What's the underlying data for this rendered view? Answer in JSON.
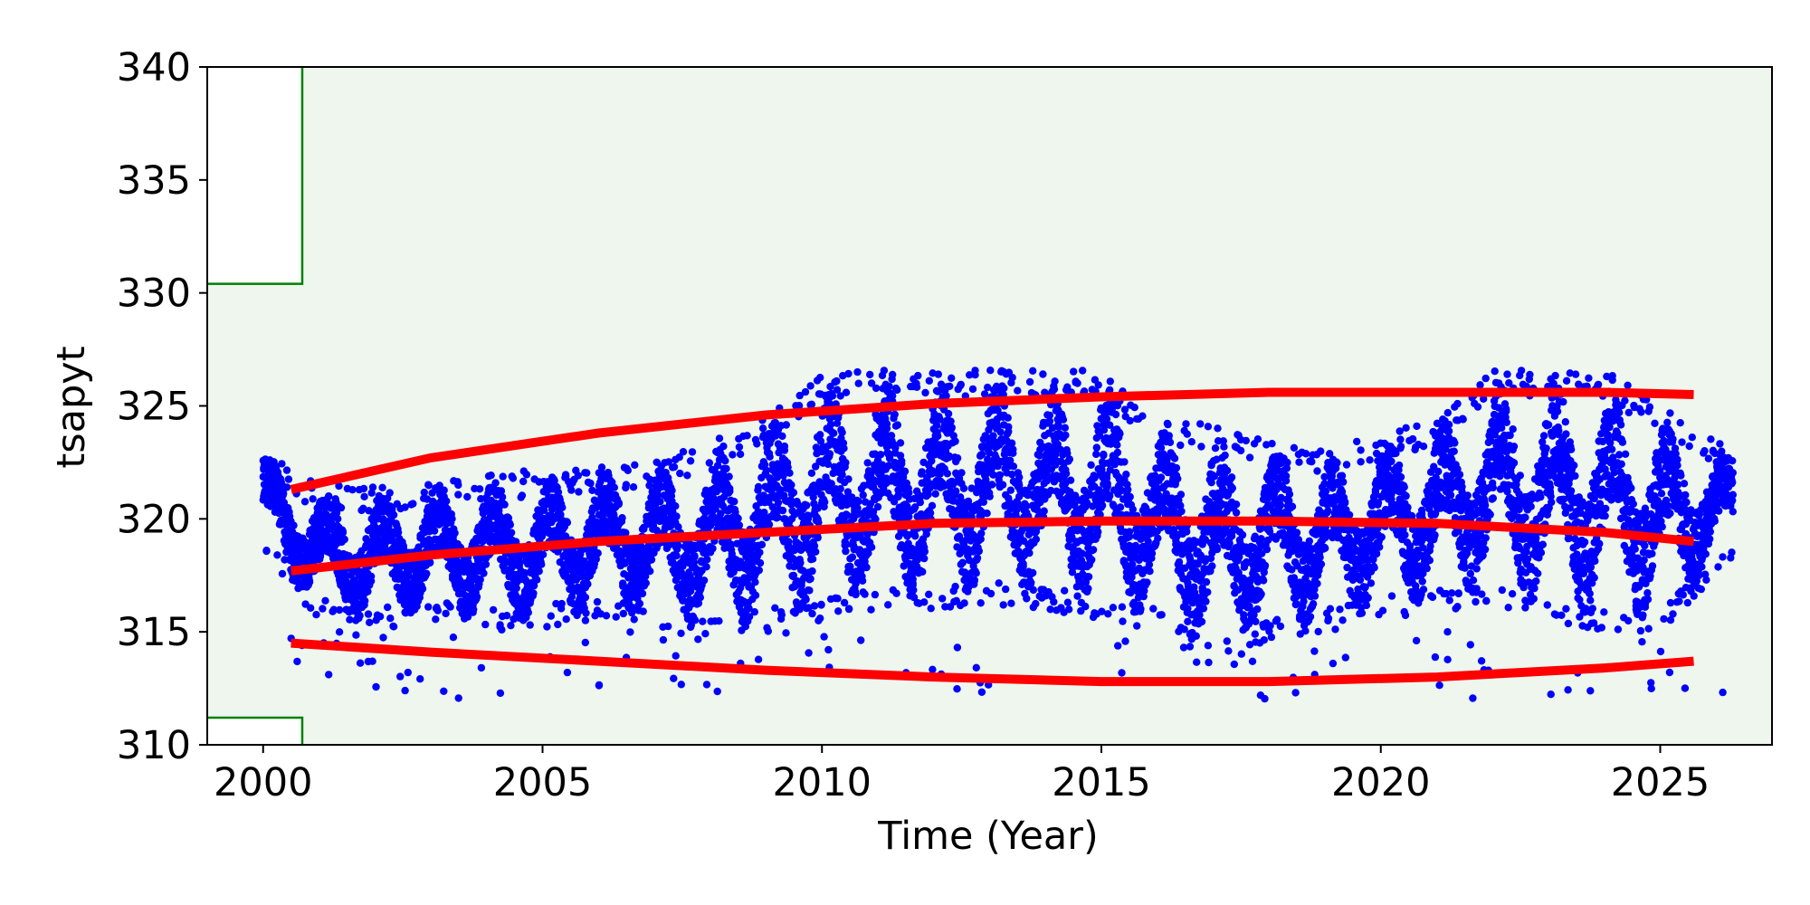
{
  "chart_data": {
    "type": "scatter",
    "title": "",
    "xlabel": "Time (Year)",
    "ylabel": "tsapyt",
    "xlim": [
      1999.0,
      2027.0
    ],
    "ylim": [
      310,
      340
    ],
    "x_ticks": [
      2000,
      2005,
      2010,
      2015,
      2020,
      2025
    ],
    "y_ticks": [
      310,
      315,
      320,
      325,
      330,
      335,
      340
    ],
    "grid": false,
    "legend": "none",
    "colors": {
      "points": "#0000ff",
      "trend_lines": "#ff0000",
      "limit_lines": "#008000",
      "valid_region_fill": "#eef6ee"
    },
    "limits": {
      "upper_limit_before_2000_7": 330.4,
      "lower_limit_before_2000_7": 311.2,
      "limit_change_year": 2000.7
    },
    "series": [
      {
        "kind": "trend",
        "x": [
          2000.5,
          2003,
          2006,
          2009,
          2012,
          2015,
          2018,
          2021,
          2024,
          2025.6
        ],
        "values": [
          321.3,
          322.7,
          323.8,
          324.6,
          325.1,
          325.4,
          325.6,
          325.6,
          325.6,
          325.5
        ]
      },
      {
        "kind": "trend",
        "x": [
          2000.5,
          2003,
          2006,
          2009,
          2012,
          2015,
          2018,
          2021,
          2024,
          2025.6
        ],
        "values": [
          317.7,
          318.4,
          319.0,
          319.4,
          319.8,
          319.9,
          319.9,
          319.8,
          319.4,
          319.0
        ]
      },
      {
        "kind": "trend",
        "x": [
          2000.5,
          2003,
          2006,
          2009,
          2012,
          2015,
          2018,
          2021,
          2024,
          2025.6
        ],
        "values": [
          314.5,
          314.1,
          313.7,
          313.3,
          313.0,
          312.8,
          312.8,
          313.0,
          313.4,
          313.7
        ]
      },
      {
        "kind": "points",
        "x_start": 2000.0,
        "x_end": 2026.3,
        "daily_envelope": [
          {
            "year": 2000.0,
            "min": 318.5,
            "max": 323.2
          },
          {
            "year": 2001.0,
            "min": 315.5,
            "max": 321.5
          },
          {
            "year": 2002.0,
            "min": 315.0,
            "max": 321.5
          },
          {
            "year": 2003.0,
            "min": 315.5,
            "max": 321.8
          },
          {
            "year": 2004.0,
            "min": 315.0,
            "max": 322.0
          },
          {
            "year": 2005.0,
            "min": 315.2,
            "max": 322.2
          },
          {
            "year": 2006.0,
            "min": 315.5,
            "max": 322.4
          },
          {
            "year": 2007.0,
            "min": 315.2,
            "max": 322.6
          },
          {
            "year": 2008.0,
            "min": 314.5,
            "max": 323.4
          },
          {
            "year": 2009.0,
            "min": 315.0,
            "max": 324.6
          },
          {
            "year": 2010.0,
            "min": 315.5,
            "max": 326.5
          },
          {
            "year": 2011.0,
            "min": 315.8,
            "max": 326.6
          },
          {
            "year": 2012.0,
            "min": 316.0,
            "max": 326.6
          },
          {
            "year": 2013.0,
            "min": 316.2,
            "max": 326.6
          },
          {
            "year": 2014.0,
            "min": 316.0,
            "max": 326.6
          },
          {
            "year": 2015.0,
            "min": 315.5,
            "max": 326.6
          },
          {
            "year": 2016.0,
            "min": 315.0,
            "max": 324.5
          },
          {
            "year": 2017.0,
            "min": 313.5,
            "max": 324.2
          },
          {
            "year": 2018.0,
            "min": 314.5,
            "max": 323.5
          },
          {
            "year": 2019.0,
            "min": 315.0,
            "max": 323.0
          },
          {
            "year": 2020.0,
            "min": 315.5,
            "max": 323.8
          },
          {
            "year": 2021.0,
            "min": 316.0,
            "max": 324.5
          },
          {
            "year": 2022.0,
            "min": 316.0,
            "max": 326.6
          },
          {
            "year": 2023.0,
            "min": 315.5,
            "max": 326.6
          },
          {
            "year": 2024.0,
            "min": 315.0,
            "max": 326.6
          },
          {
            "year": 2025.0,
            "min": 315.0,
            "max": 325.0
          },
          {
            "year": 2026.3,
            "min": 318.3,
            "max": 323.0
          }
        ]
      }
    ]
  }
}
